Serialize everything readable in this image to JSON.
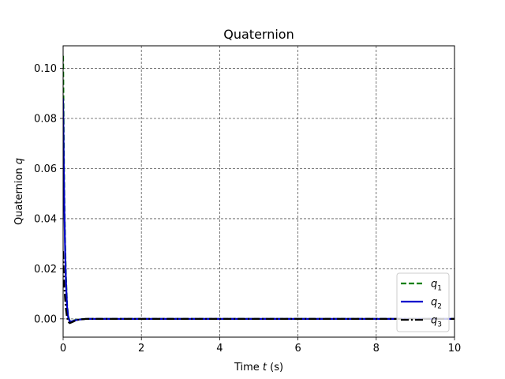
{
  "chart_data": {
    "type": "line",
    "title": "Quaternion",
    "xlabel": {
      "prefix": "Time ",
      "var": "t",
      "suffix": " (s)"
    },
    "ylabel": {
      "prefix": "Quaternion ",
      "var": "q"
    },
    "xlim": [
      0,
      10
    ],
    "ylim": [
      -0.0073,
      0.109
    ],
    "xticks": [
      0,
      2,
      4,
      6,
      8,
      10
    ],
    "xtick_labels": [
      "0",
      "2",
      "4",
      "6",
      "8",
      "10"
    ],
    "yticks": [
      0.0,
      0.02,
      0.04,
      0.06,
      0.08,
      0.1
    ],
    "ytick_labels": [
      "0.00",
      "0.02",
      "0.04",
      "0.06",
      "0.08",
      "0.10"
    ],
    "grid": true,
    "grid_style": "dashed",
    "legend": {
      "placement": "lower-right"
    },
    "series": [
      {
        "name": "q1",
        "label_base": "q",
        "label_sub": "1",
        "color": "#008000",
        "style": "dashed",
        "x": [
          0,
          0.01,
          0.02,
          0.03,
          0.05,
          0.07,
          0.1,
          0.13,
          0.17,
          0.22,
          0.3,
          0.4,
          0.6,
          1.0,
          2.0,
          4.0,
          6.0,
          8.0,
          10.0
        ],
        "y": [
          0.105,
          0.085,
          0.066,
          0.05,
          0.031,
          0.018,
          0.006,
          0.001,
          -0.0008,
          -0.0009,
          -0.0005,
          -0.0002,
          0.0,
          0.0,
          0.0,
          0.0,
          0.0,
          0.0,
          0.0
        ]
      },
      {
        "name": "q2",
        "label_base": "q",
        "label_sub": "2",
        "color": "#0000cc",
        "style": "solid",
        "x": [
          0,
          0.01,
          0.02,
          0.03,
          0.05,
          0.07,
          0.1,
          0.13,
          0.17,
          0.22,
          0.3,
          0.4,
          0.6,
          1.0,
          2.0,
          4.0,
          6.0,
          8.0,
          10.0
        ],
        "y": [
          0.088,
          0.072,
          0.057,
          0.045,
          0.028,
          0.016,
          0.005,
          0.0005,
          -0.001,
          -0.001,
          -0.0006,
          -0.0003,
          0.0,
          0.0,
          0.0,
          0.0,
          0.0,
          0.0,
          0.0
        ]
      },
      {
        "name": "q3",
        "label_base": "q",
        "label_sub": "3",
        "color": "#000000",
        "style": "dashdot",
        "x": [
          0,
          0.01,
          0.02,
          0.03,
          0.05,
          0.07,
          0.1,
          0.13,
          0.17,
          0.22,
          0.3,
          0.4,
          0.6,
          1.0,
          2.0,
          4.0,
          6.0,
          8.0,
          10.0
        ],
        "y": [
          0.027,
          0.022,
          0.017,
          0.013,
          0.008,
          0.004,
          0.0005,
          -0.0012,
          -0.0017,
          -0.0014,
          -0.0008,
          -0.0003,
          0.0,
          0.0,
          0.0,
          0.0,
          0.0,
          0.0,
          0.0
        ]
      }
    ]
  }
}
